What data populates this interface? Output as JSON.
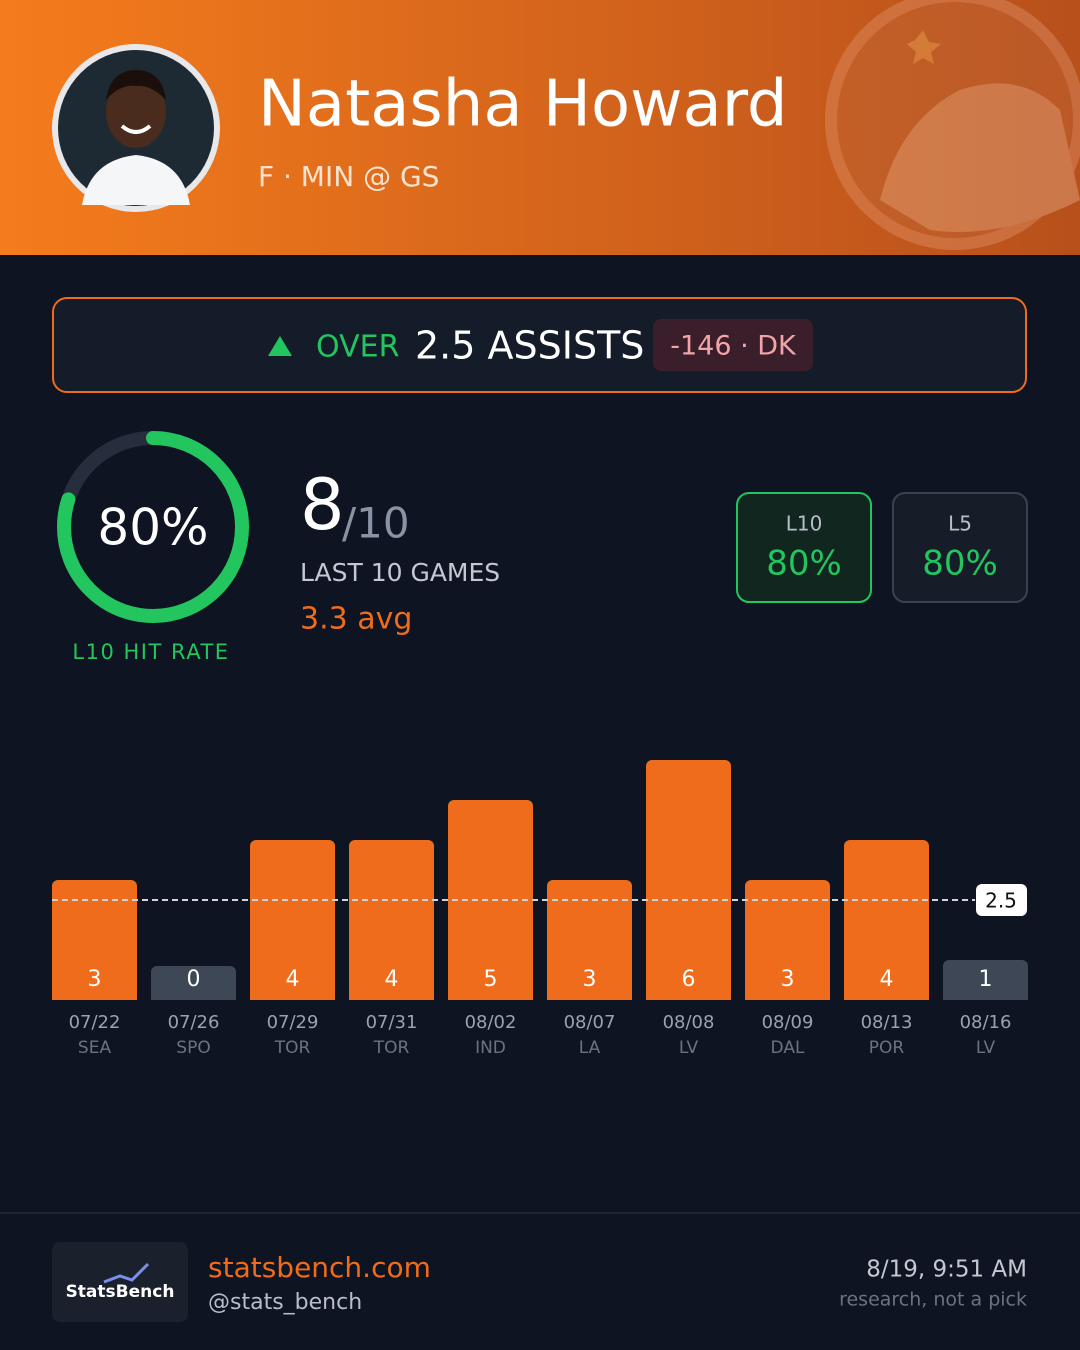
{
  "header": {
    "name": "Natasha Howard",
    "subtitle": "F · MIN @ GS"
  },
  "prop": {
    "direction": "OVER",
    "line": "2.5 ASSISTS",
    "odds": "-146 · DK"
  },
  "hit_rate": {
    "ring": {
      "value": 80,
      "label": "80%"
    },
    "caption": "L10 HIT RATE",
    "hits": 8,
    "games": "/10",
    "games_label": "LAST 10 GAMES",
    "average": "3.3 avg"
  },
  "splits": [
    {
      "label": "L10",
      "value": "80%"
    },
    {
      "label": "L5",
      "value": "80%"
    }
  ],
  "chart_data": {
    "type": "bar",
    "categories": [
      "07/22",
      "07/26",
      "07/29",
      "07/31",
      "08/02",
      "08/07",
      "08/08",
      "08/09",
      "08/13",
      "08/16"
    ],
    "opponents": [
      "SEA",
      "SPO",
      "TOR",
      "TOR",
      "IND",
      "LA",
      "LV",
      "DAL",
      "POR",
      "LV"
    ],
    "values": [
      3,
      0,
      4,
      4,
      5,
      3,
      6,
      3,
      4,
      1
    ],
    "threshold": 2.5,
    "ylim": [
      0,
      6
    ],
    "over_color": "#ee6c1b",
    "under_color": "#3e4756"
  },
  "footer": {
    "logo": "StatsBench",
    "site": "statsbench.com",
    "handle": "@stats_bench",
    "timestamp": "8/19, 9:51 AM",
    "disclaimer": "research, not a pick"
  }
}
